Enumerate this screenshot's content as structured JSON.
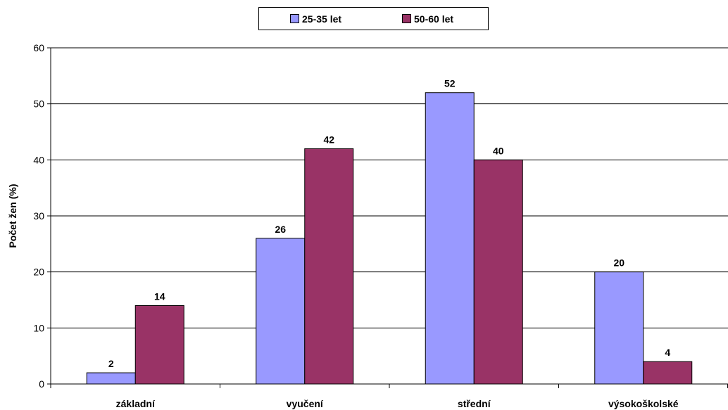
{
  "chart_data": {
    "type": "bar",
    "categories": [
      "základní",
      "vyučení",
      "střední",
      "výsokoškolské"
    ],
    "series": [
      {
        "name": "25-35 let",
        "color": "#9999ff",
        "values": [
          2,
          26,
          52,
          20
        ]
      },
      {
        "name": "50-60 let",
        "color": "#993366",
        "values": [
          14,
          42,
          40,
          4
        ]
      }
    ],
    "title": "",
    "xlabel": "",
    "ylabel": "Počet žen (%)",
    "ylim": [
      0,
      60
    ],
    "yticks": [
      0,
      10,
      20,
      30,
      40,
      50,
      60
    ],
    "grid": true,
    "legend_position": "top-center",
    "data_labels": true
  }
}
